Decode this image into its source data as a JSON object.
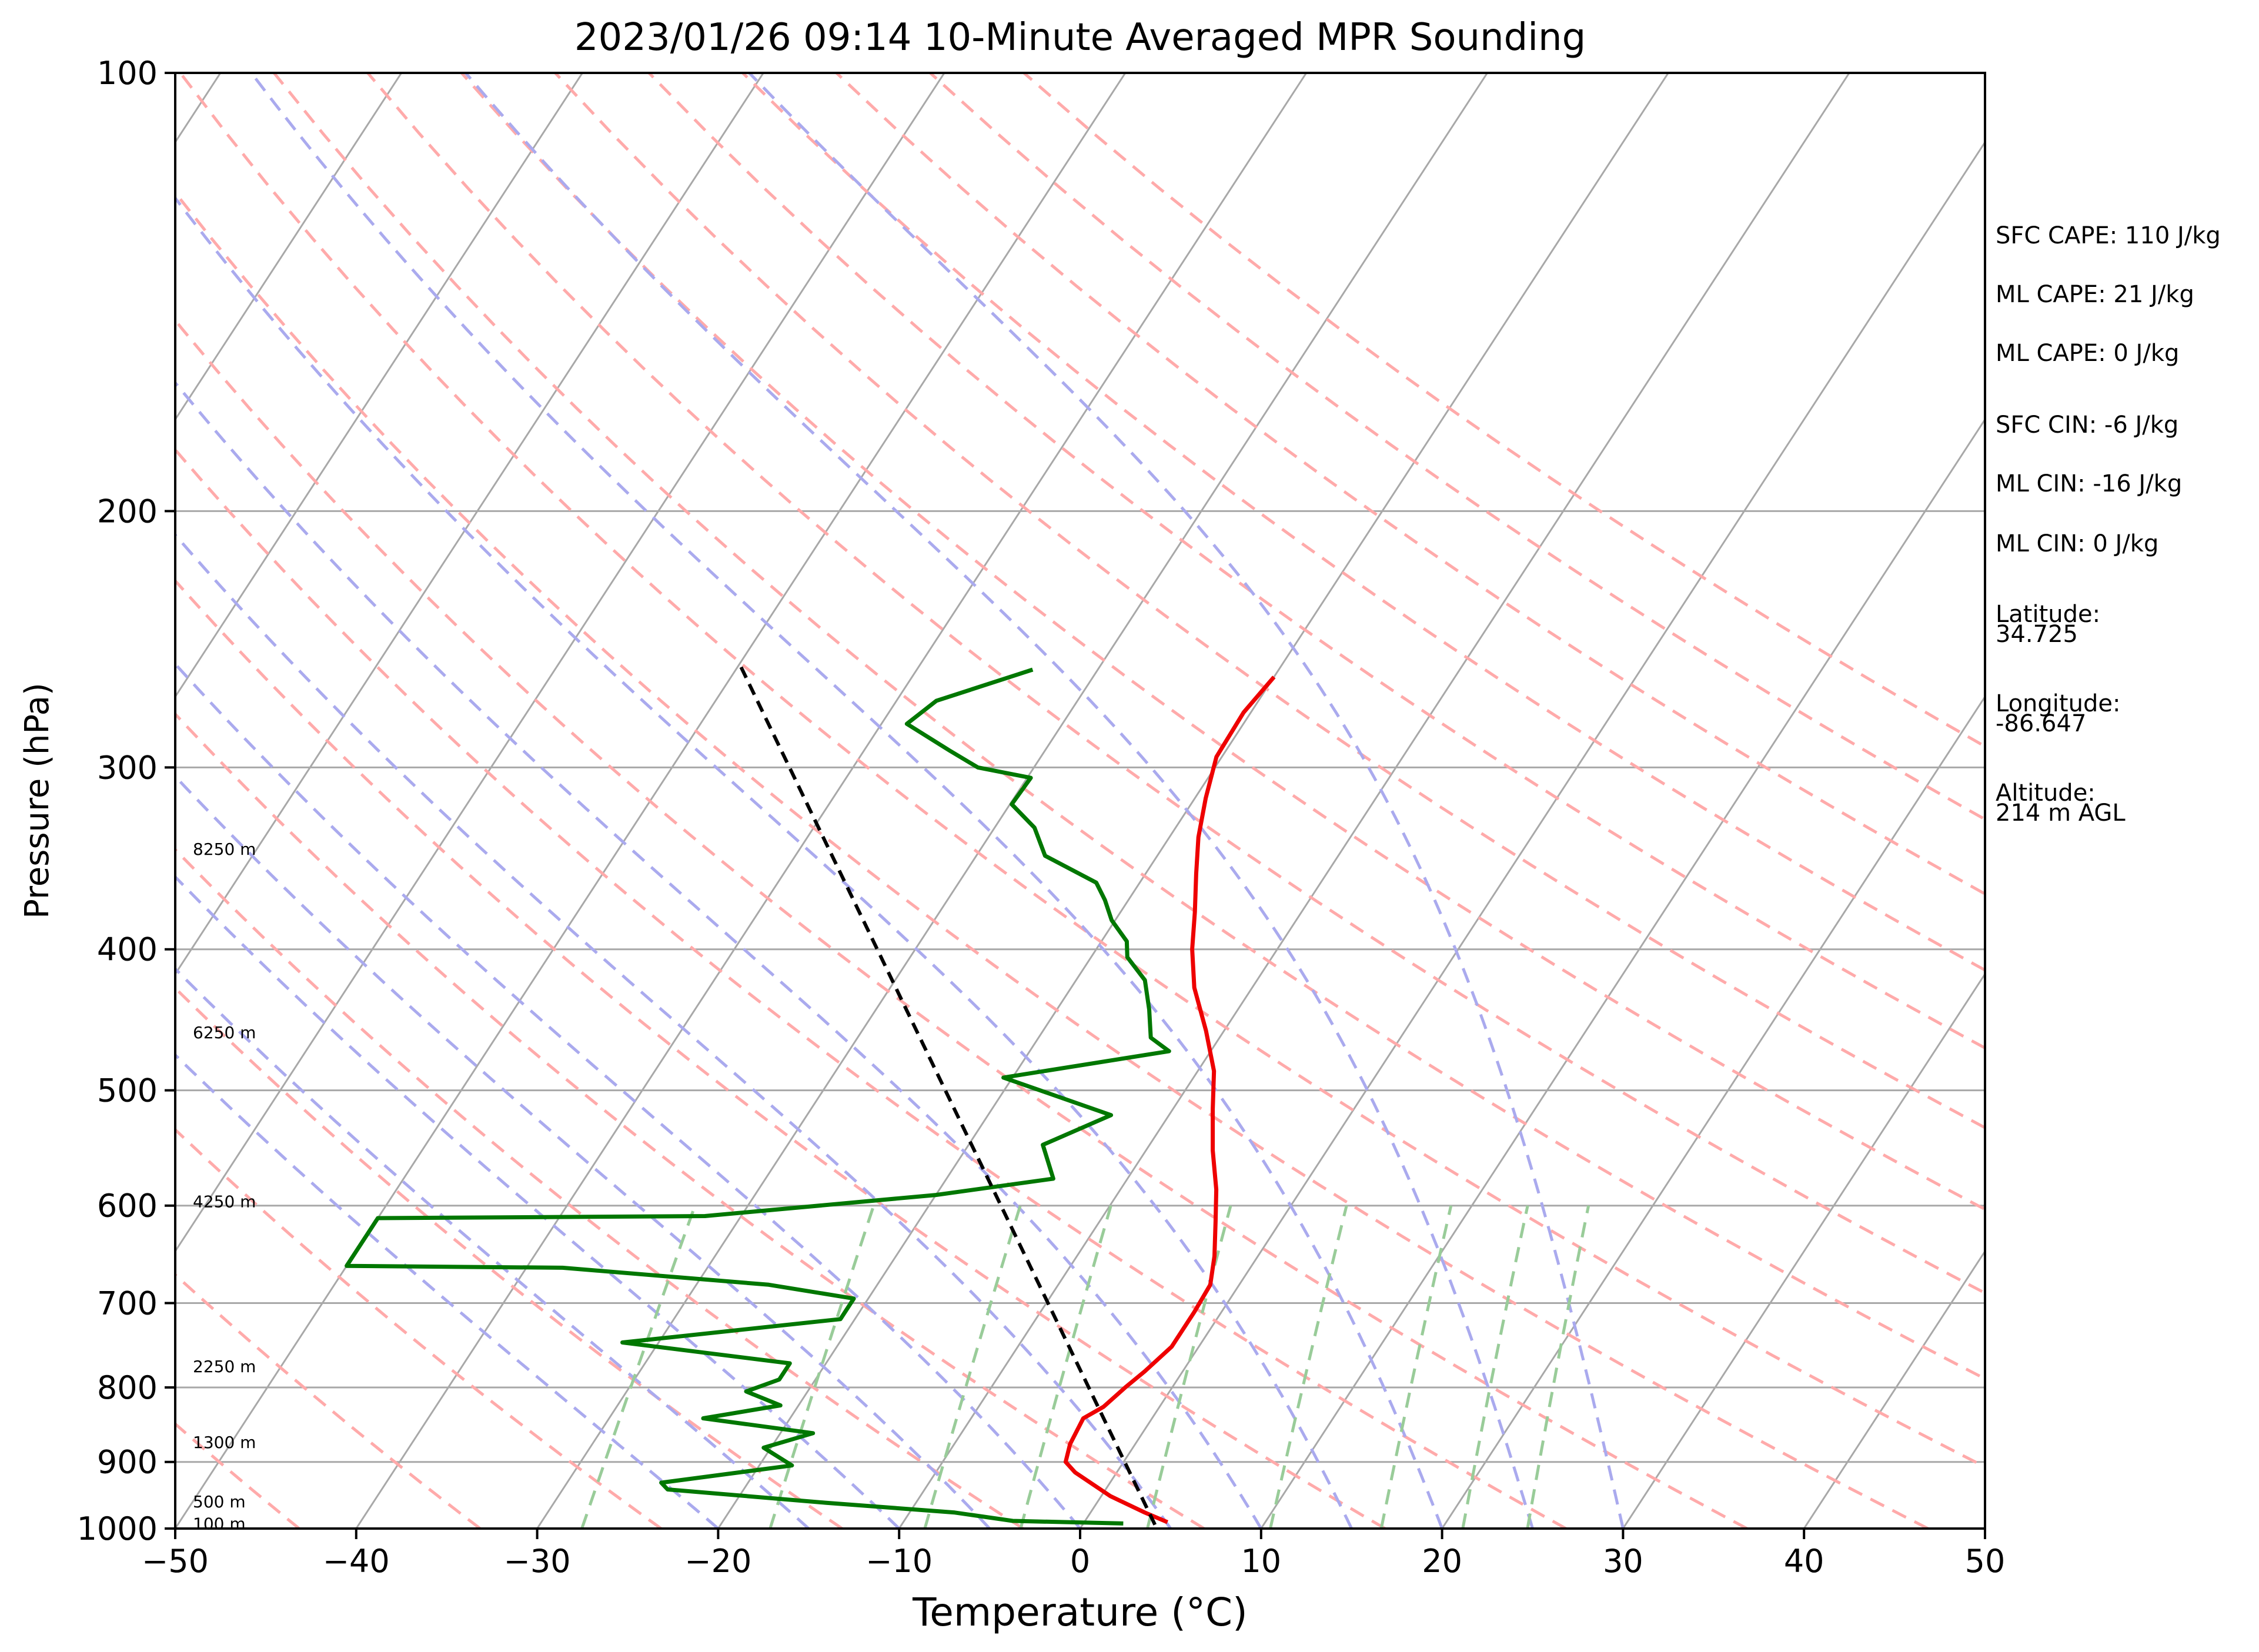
{
  "chart_data": {
    "type": "line",
    "title": "2023/01/26 09:14 10-Minute Averaged MPR Sounding",
    "xlabel": "Temperature (°C)",
    "ylabel": "Pressure (hPa)",
    "xlim": [
      -50,
      50
    ],
    "ylim": [
      1000,
      100
    ],
    "y_scale": "log",
    "x_ticks": [
      -50,
      -40,
      -30,
      -20,
      -10,
      0,
      10,
      20,
      30,
      40,
      50
    ],
    "x_tick_labels": [
      "−50",
      "−40",
      "−30",
      "−20",
      "−10",
      "0",
      "10",
      "20",
      "30",
      "40",
      "50"
    ],
    "y_ticks": [
      1000,
      900,
      800,
      700,
      600,
      500,
      400,
      300,
      200,
      100
    ],
    "y_tick_labels": [
      "1000",
      "900",
      "800",
      "700",
      "600",
      "500",
      "400",
      "300",
      "200",
      "100"
    ],
    "grid": true,
    "skew_c_per_log10": 52.5,
    "colors": {
      "temperature": "#ee0000",
      "dewpoint": "#007700",
      "parcel": "#000000",
      "isotherm": "#a8a8a8",
      "dry_adiabat": "#ffaaaa",
      "moist_adiabat": "#aaaaee",
      "mixing_ratio": "#99cc99"
    },
    "series": [
      {
        "role": "temperature",
        "points": [
          [
            -20.0,
            260
          ],
          [
            -20.4,
            275
          ],
          [
            -20.3,
            295
          ],
          [
            -19.4,
            315
          ],
          [
            -18.4,
            335
          ],
          [
            -17.2,
            355
          ],
          [
            -15.9,
            377
          ],
          [
            -14.7,
            400
          ],
          [
            -13.2,
            425
          ],
          [
            -11.0,
            455
          ],
          [
            -9.1,
            485
          ],
          [
            -7.8,
            515
          ],
          [
            -6.3,
            550
          ],
          [
            -4.7,
            585
          ],
          [
            -3.6,
            615
          ],
          [
            -2.4,
            650
          ],
          [
            -1.6,
            680
          ],
          [
            -1.5,
            710
          ],
          [
            -1.5,
            750
          ],
          [
            -2.1,
            780
          ],
          [
            -2.6,
            800
          ],
          [
            -3.1,
            825
          ],
          [
            -3.8,
            840
          ],
          [
            -3.6,
            875
          ],
          [
            -3.2,
            900
          ],
          [
            -2.3,
            915
          ],
          [
            0.5,
            950
          ],
          [
            3.0,
            975
          ],
          [
            4.6,
            990
          ]
        ]
      },
      {
        "role": "dewpoint",
        "points": [
          [
            -33.6,
            257
          ],
          [
            -37.8,
            270
          ],
          [
            -38.6,
            280
          ],
          [
            -35.3,
            292
          ],
          [
            -33.1,
            300
          ],
          [
            -29.8,
            305
          ],
          [
            -29.9,
            318
          ],
          [
            -27.8,
            330
          ],
          [
            -26.2,
            345
          ],
          [
            -22.4,
            360
          ],
          [
            -21.3,
            370
          ],
          [
            -20.2,
            382
          ],
          [
            -18.6,
            395
          ],
          [
            -18.0,
            405
          ],
          [
            -16.2,
            420
          ],
          [
            -14.9,
            440
          ],
          [
            -13.8,
            460
          ],
          [
            -12.3,
            470
          ],
          [
            -20.5,
            490
          ],
          [
            -13.2,
            520
          ],
          [
            -15.9,
            545
          ],
          [
            -14.1,
            575
          ],
          [
            -20.0,
            590
          ],
          [
            -32.0,
            610
          ],
          [
            -50.0,
            612
          ],
          [
            -50.0,
            660
          ],
          [
            -38.0,
            662
          ],
          [
            -26.0,
            680
          ],
          [
            -20.8,
            695
          ],
          [
            -20.8,
            718
          ],
          [
            -32.0,
            745
          ],
          [
            -22.0,
            770
          ],
          [
            -22.0,
            790
          ],
          [
            -23.4,
            805
          ],
          [
            -21.0,
            823
          ],
          [
            -24.8,
            840
          ],
          [
            -18.2,
            860
          ],
          [
            -20.4,
            880
          ],
          [
            -18.2,
            905
          ],
          [
            -24.8,
            930
          ],
          [
            -24.2,
            940
          ],
          [
            -15.0,
            960
          ],
          [
            -7.5,
            975
          ],
          [
            -4.0,
            988
          ],
          [
            2.2,
            992
          ]
        ]
      },
      {
        "role": "parcel",
        "points": [
          [
            -49.8,
            256
          ],
          [
            4.0,
            994
          ]
        ]
      }
    ],
    "height_labels": [
      {
        "label": "8250 m",
        "p": 342
      },
      {
        "label": "6250 m",
        "p": 457
      },
      {
        "label": "4250 m",
        "p": 597
      },
      {
        "label": "2250 m",
        "p": 775
      },
      {
        "label": "1300 m",
        "p": 874
      },
      {
        "label": "500 m",
        "p": 960
      },
      {
        "label": "100 m",
        "p": 994
      }
    ],
    "annotations": [
      [
        "SFC CAPE: 110 J/kg"
      ],
      [
        "ML CAPE: 21 J/kg"
      ],
      [
        "ML CAPE: 0 J/kg"
      ],
      [
        "SFC CIN: -6 J/kg"
      ],
      [
        "ML CIN: -16 J/kg"
      ],
      [
        "ML CIN: 0 J/kg"
      ],
      [
        "Latitude:",
        "34.725"
      ],
      [
        "Longitude:",
        "-86.647"
      ],
      [
        "Altitude:",
        "214 m AGL"
      ]
    ],
    "dry_adiabats_K": [
      230,
      240,
      250,
      260,
      270,
      280,
      290,
      300,
      310,
      320,
      330,
      340,
      350,
      360,
      370,
      380,
      390,
      400,
      410,
      420
    ],
    "moist_adiabats_C": [
      -20,
      -15,
      -10,
      -5,
      0,
      5,
      10,
      15,
      20,
      25,
      30
    ],
    "mixing_ratios_gkg": [
      0.4,
      1,
      2,
      3,
      5,
      8,
      12,
      16,
      20
    ]
  }
}
